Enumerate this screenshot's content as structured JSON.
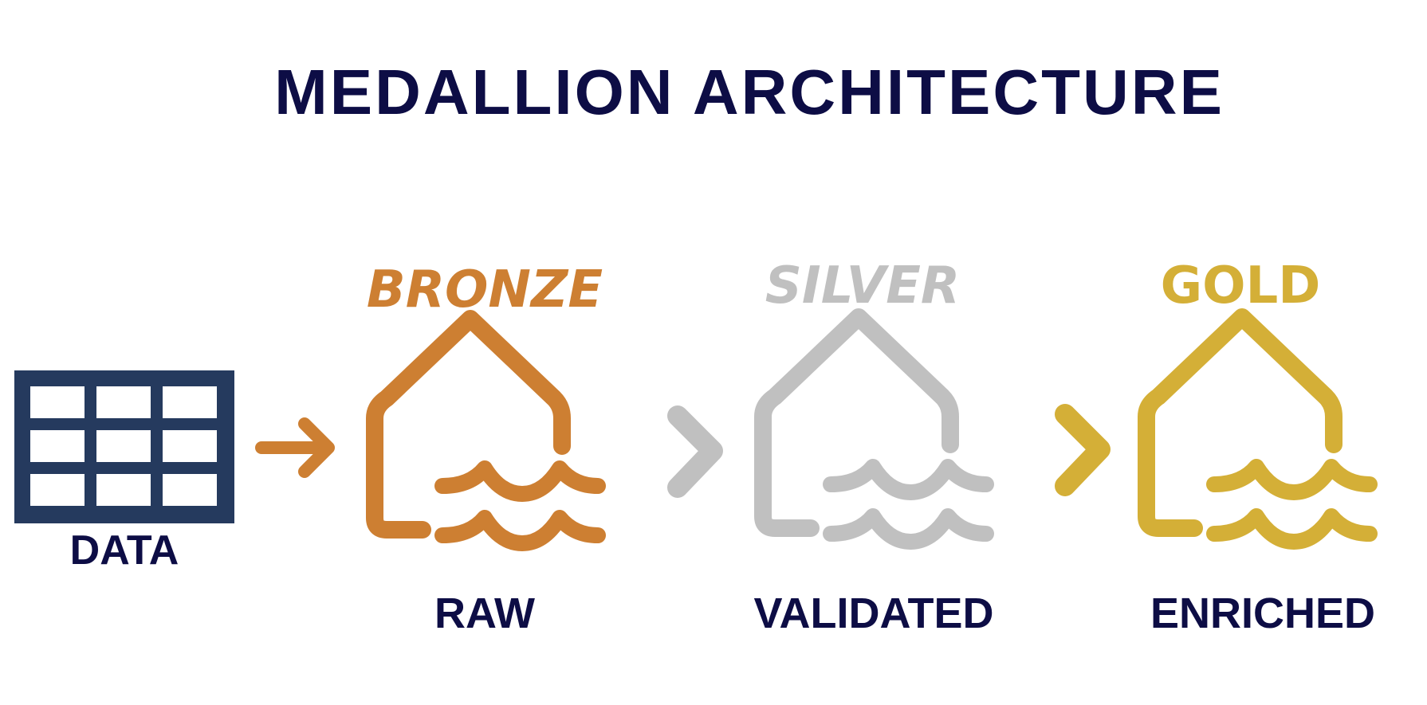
{
  "title": "MEDALLION ARCHITECTURE",
  "source": {
    "label": "DATA",
    "color": "#253a5e",
    "icon": "table-grid-icon"
  },
  "tiers": [
    {
      "name": "BRONZE",
      "label": "RAW",
      "color": "#cd7f32",
      "icon": "lakehouse-icon"
    },
    {
      "name": "SILVER",
      "label": "VALIDATED",
      "color": "#c0c0c0",
      "icon": "lakehouse-icon"
    },
    {
      "name": "GOLD",
      "label": "ENRICHED",
      "color": "#d4af37",
      "icon": "lakehouse-icon"
    }
  ],
  "colors": {
    "title": "#0d0d45",
    "label": "#0d0d45"
  }
}
